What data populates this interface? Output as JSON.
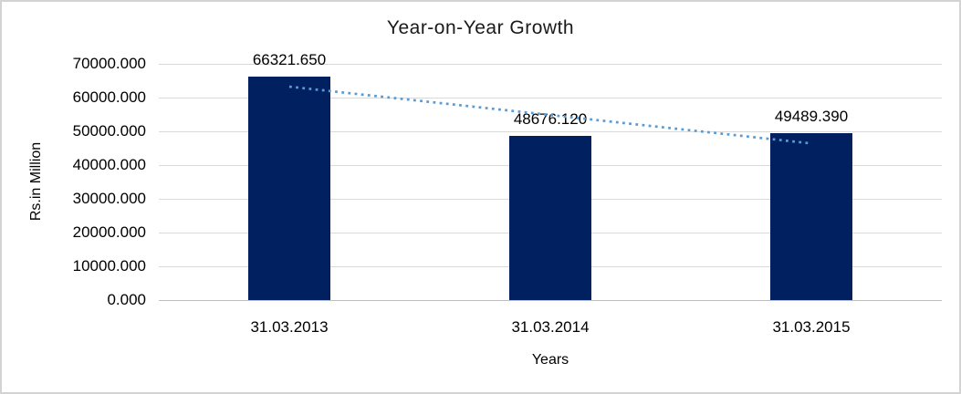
{
  "frame": {
    "background": "#ffffff",
    "border_color": "#d3d3d3"
  },
  "chart_data": {
    "type": "bar",
    "title": "Year-on-Year Growth",
    "xlabel": "Years",
    "ylabel": "Rs.in Million",
    "categories": [
      "31.03.2013",
      "31.03.2014",
      "31.03.2015"
    ],
    "values": [
      66321.65,
      48676.12,
      49489.39
    ],
    "data_labels": [
      "66321.650",
      "48676.120",
      "49489.390"
    ],
    "y_ticks": [
      "0.000",
      "10000.000",
      "20000.000",
      "30000.000",
      "40000.000",
      "50000.000",
      "60000.000",
      "70000.000"
    ],
    "ylim": [
      0,
      70000
    ],
    "grid": "horizontal-light-gray",
    "legend_position": "none",
    "bar_color": "#002060",
    "trendline": {
      "type": "linear",
      "style": "dotted",
      "color": "#5B9BD5"
    }
  }
}
